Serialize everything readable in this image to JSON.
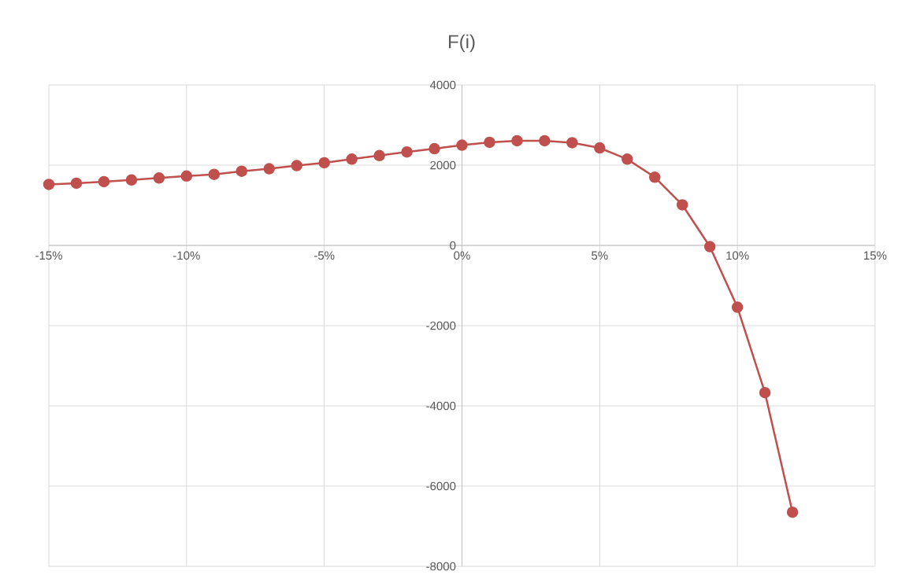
{
  "chart_data": {
    "type": "line",
    "title": "F(i)",
    "x": [
      -15,
      -14,
      -13,
      -12,
      -11,
      -10,
      -9,
      -8,
      -7,
      -6,
      -5,
      -4,
      -3,
      -2,
      -1,
      0,
      1,
      2,
      3,
      4,
      5,
      6,
      7,
      8,
      9,
      10,
      11,
      12
    ],
    "values": [
      1520,
      1550,
      1590,
      1630,
      1680,
      1730,
      1770,
      1850,
      1910,
      1990,
      2060,
      2150,
      2240,
      2330,
      2410,
      2500,
      2570,
      2610,
      2610,
      2560,
      2430,
      2150,
      1700,
      1010,
      -30,
      -1540,
      -3670,
      -6650
    ],
    "color": "#c0504d",
    "xlim": [
      -15,
      15
    ],
    "ylim": [
      -8000,
      4000
    ],
    "xticks": [
      {
        "value": -15,
        "label": "-15%"
      },
      {
        "value": -10,
        "label": "-10%"
      },
      {
        "value": -5,
        "label": "-5%"
      },
      {
        "value": 0,
        "label": "0%"
      },
      {
        "value": 5,
        "label": "5%"
      },
      {
        "value": 10,
        "label": "10%"
      },
      {
        "value": 15,
        "label": "15%"
      }
    ],
    "yticks": [
      -8000,
      -6000,
      -4000,
      -2000,
      0,
      2000,
      4000
    ],
    "grid": true,
    "marker": "circle",
    "line_style": "solid"
  }
}
